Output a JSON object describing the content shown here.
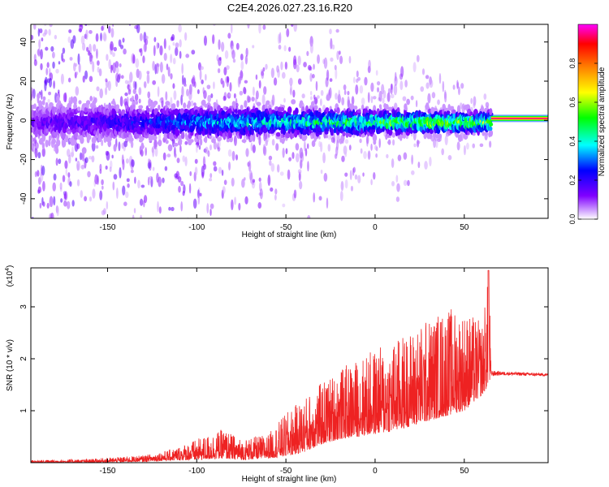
{
  "page_title": "C2E4.2026.027.23.16.R20",
  "chart_data": [
    {
      "type": "heatmap",
      "title": "C2E4.2026.027.23.16.R20",
      "xlabel": "Height of straight line (km)",
      "ylabel": "Frequency (Hz)",
      "xlim": [
        -193,
        97
      ],
      "ylim": [
        -50,
        49
      ],
      "x_ticks": [
        -150,
        -100,
        -50,
        0,
        50
      ],
      "x_tick_labels": [
        "-150",
        "-100",
        "-50",
        "0",
        "50"
      ],
      "y_ticks": [
        40,
        20,
        0,
        -20,
        -40
      ],
      "y_tick_labels": [
        "40",
        "20",
        "0",
        "-20",
        "-40"
      ],
      "colorbar": {
        "label": "Normalized spectral amplitude",
        "range": [
          0,
          1
        ],
        "ticks": [
          0.0,
          0.2,
          0.4,
          0.6,
          0.8
        ],
        "tick_labels": [
          "0.0",
          "0.2",
          "0.4",
          "0.6",
          "0.8"
        ],
        "colormap": [
          "#ffffff",
          "#8000ff",
          "#0000ff",
          "#00ffff",
          "#00ff00",
          "#ffff00",
          "#ff8000",
          "#ff0000",
          "#ff00ff"
        ]
      },
      "ridge_frequency_hz": 1,
      "steady_segment": {
        "x_start": 65,
        "x_end": 97,
        "frequency_hz": 1,
        "amplitude": 0.95
      },
      "amplitude_profile": {
        "x": [
          -193,
          -150,
          -120,
          -100,
          -80,
          -60,
          -40,
          -20,
          0,
          20,
          40,
          55,
          64
        ],
        "peak_amplitude": [
          0.15,
          0.22,
          0.28,
          0.35,
          0.4,
          0.42,
          0.45,
          0.5,
          0.52,
          0.55,
          0.58,
          0.6,
          0.62
        ]
      }
    },
    {
      "type": "line",
      "xlabel": "Height of straight line (km)",
      "ylabel": "SNR (10 * v/v)",
      "y_scale_label": "(x10",
      "y_scale_exponent": "4",
      "xlim": [
        -193,
        97
      ],
      "ylim": [
        0,
        3.75
      ],
      "x_ticks": [
        -150,
        -100,
        -50,
        0,
        50
      ],
      "x_tick_labels": [
        "-150",
        "-100",
        "-50",
        "0",
        "50"
      ],
      "y_ticks": [
        1,
        2,
        3
      ],
      "y_tick_labels": [
        "1",
        "2",
        "3"
      ],
      "series": [
        {
          "name": "SNR",
          "color": "#ee2222",
          "envelope": {
            "x": [
              -193,
              -160,
              -130,
              -115,
              -100,
              -85,
              -75,
              -60,
              -50,
              -40,
              -30,
              -20,
              -10,
              0,
              10,
              20,
              30,
              40,
              50,
              60,
              64,
              65,
              70,
              97
            ],
            "top": [
              0.05,
              0.07,
              0.14,
              0.25,
              0.45,
              0.65,
              0.45,
              0.55,
              0.95,
              1.25,
              1.55,
              1.8,
              2.0,
              2.2,
              2.35,
              2.55,
              2.8,
              3.0,
              2.95,
              2.7,
              3.7,
              1.78,
              1.76,
              1.72
            ],
            "base": [
              0.0,
              0.0,
              0.02,
              0.04,
              0.05,
              0.08,
              0.05,
              0.08,
              0.12,
              0.2,
              0.35,
              0.45,
              0.5,
              0.55,
              0.6,
              0.7,
              0.8,
              0.9,
              1.0,
              1.3,
              1.5,
              1.65,
              1.68,
              1.66
            ]
          }
        }
      ]
    }
  ]
}
